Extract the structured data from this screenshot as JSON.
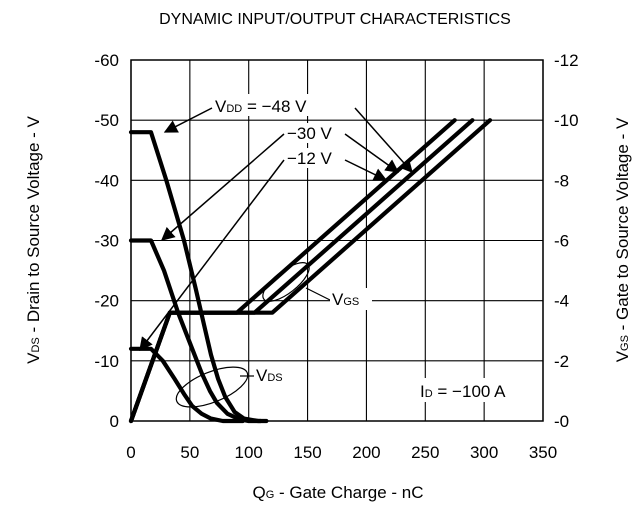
{
  "chart_data": {
    "type": "line",
    "title": "DYNAMIC INPUT/OUTPUT CHARACTERISTICS",
    "xlabel": {
      "main": "Q",
      "sub": "G",
      "rest": " - Gate Charge - nC"
    },
    "ylabel_left": {
      "main": "V",
      "sub": "DS",
      "rest": " - Drain to Source Voltage - V"
    },
    "ylabel_right": {
      "main": "V",
      "sub": "GS",
      "rest": " - Gate to Source Voltage - V"
    },
    "xlim": [
      0,
      350
    ],
    "ylim_left": [
      0,
      -60
    ],
    "ylim_right": [
      0,
      -12
    ],
    "x_ticks": [
      "0",
      "50",
      "100",
      "150",
      "200",
      "250",
      "300",
      "350"
    ],
    "y_left_ticks": [
      "0",
      "-10",
      "-20",
      "-30",
      "-40",
      "-50",
      "-60"
    ],
    "y_right_ticks": [
      "-0",
      "-2",
      "-4",
      "-6",
      "-8",
      "-10",
      "-12"
    ],
    "grid": true,
    "series": [
      {
        "name": "VDS (VDD = -48 V)",
        "axis": "left",
        "points": [
          [
            0,
            -48
          ],
          [
            17,
            -48
          ],
          [
            30,
            -40
          ],
          [
            45,
            -30
          ],
          [
            55,
            -22
          ],
          [
            62,
            -16
          ],
          [
            68,
            -11
          ],
          [
            74,
            -7
          ],
          [
            80,
            -4
          ],
          [
            88,
            -1.5
          ],
          [
            96,
            -0.4
          ],
          [
            108,
            0
          ],
          [
            115,
            0
          ]
        ]
      },
      {
        "name": "VDS (VDD = -30 V)",
        "axis": "left",
        "points": [
          [
            0,
            -30
          ],
          [
            17,
            -30
          ],
          [
            28,
            -25
          ],
          [
            40,
            -18
          ],
          [
            52,
            -12
          ],
          [
            60,
            -8
          ],
          [
            67,
            -5
          ],
          [
            73,
            -3
          ],
          [
            82,
            -1.2
          ],
          [
            92,
            -0.3
          ],
          [
            100,
            0
          ],
          [
            110,
            0
          ]
        ]
      },
      {
        "name": "VDS (VDD = -12 V)",
        "axis": "left",
        "points": [
          [
            0,
            -12
          ],
          [
            17,
            -12
          ],
          [
            27,
            -10
          ],
          [
            37,
            -7
          ],
          [
            45,
            -4.5
          ],
          [
            52,
            -2.5
          ],
          [
            60,
            -1.2
          ],
          [
            68,
            -0.4
          ],
          [
            78,
            0
          ],
          [
            95,
            0
          ]
        ]
      },
      {
        "name": "VGS (VDD = -12 V)",
        "axis": "right",
        "points": [
          [
            0,
            0
          ],
          [
            33,
            -3.6
          ],
          [
            90,
            -3.6
          ],
          [
            275,
            -10
          ]
        ]
      },
      {
        "name": "VGS (VDD = -30 V)",
        "axis": "right",
        "points": [
          [
            0,
            0
          ],
          [
            33,
            -3.6
          ],
          [
            105,
            -3.6
          ],
          [
            290,
            -10
          ]
        ]
      },
      {
        "name": "VGS (VDD = -48 V)",
        "axis": "right",
        "points": [
          [
            0,
            0
          ],
          [
            33,
            -3.6
          ],
          [
            120,
            -3.6
          ],
          [
            305,
            -10
          ]
        ]
      }
    ],
    "annotations": {
      "vdd_label": "V",
      "vdd_sub": "DD",
      "vdd_48": " = −48 V",
      "vdd_30": "−30 V",
      "vdd_12": "−12 V",
      "vgs_main": "V",
      "vgs_sub": "GS",
      "vds_main": "V",
      "vds_sub": "DS",
      "id_main": "I",
      "id_sub": "D",
      "id_rest": " = −100 A"
    }
  }
}
